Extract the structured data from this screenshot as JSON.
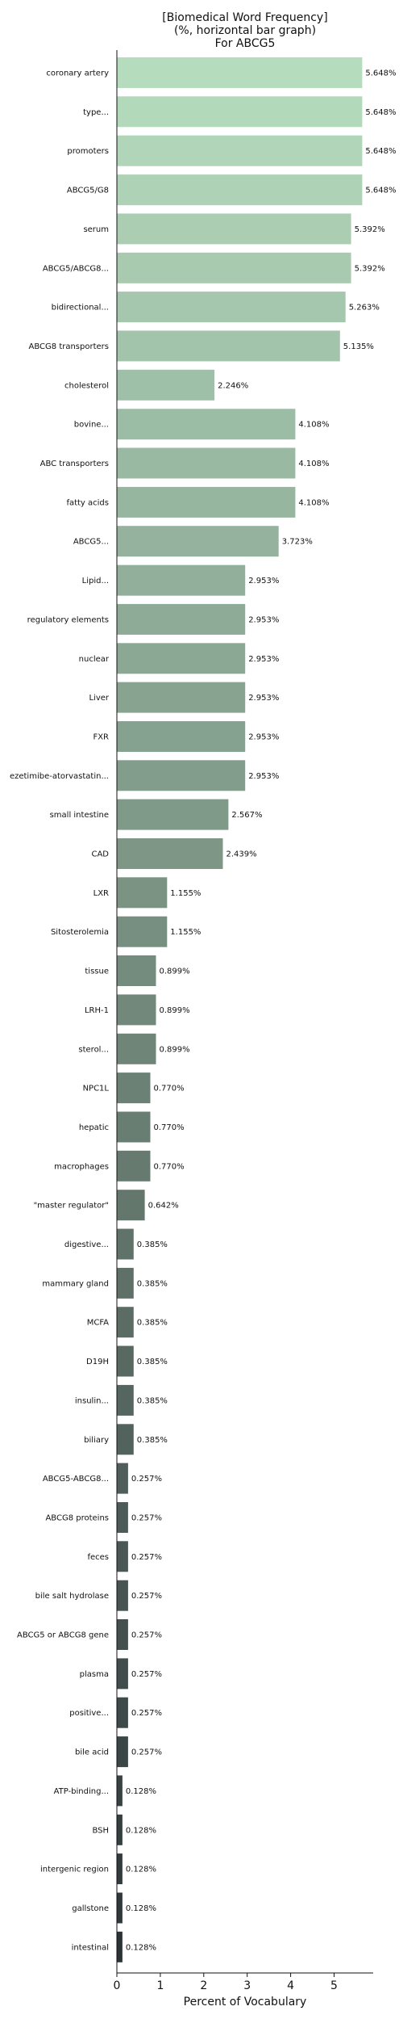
{
  "chart_data": {
    "type": "bar",
    "orientation": "horizontal",
    "title": [
      "[Biomedical Word Frequency]",
      "(%, horizontal bar graph)",
      "For ABCG5"
    ],
    "xlabel": "Percent of Vocabulary",
    "ylabel": "",
    "xlim": [
      0,
      5.9
    ],
    "xticks": [
      0,
      1,
      2,
      3,
      4,
      5
    ],
    "grid": false,
    "legend": "none",
    "value_suffix": "%",
    "color_start": "#b6dcbe",
    "color_end": "#2d3438",
    "categories": [
      "coronary artery",
      "type...",
      "promoters",
      "ABCG5/G8",
      "serum",
      "ABCG5/ABCG8...",
      "bidirectional...",
      "ABCG8 transporters",
      "cholesterol",
      "bovine...",
      "ABC transporters",
      "fatty acids",
      "ABCG5...",
      "Lipid...",
      "regulatory elements",
      "nuclear",
      "Liver",
      "FXR",
      "ezetimibe-atorvastatin...",
      "small intestine",
      "CAD",
      "LXR",
      "Sitosterolemia",
      "tissue",
      "LRH-1",
      "sterol...",
      "NPC1L",
      "hepatic",
      "macrophages",
      "\"master regulator\"",
      "digestive...",
      "mammary gland",
      "MCFA",
      "D19H",
      "insulin...",
      "biliary",
      "ABCG5-ABCG8...",
      "ABCG8 proteins",
      "feces",
      "bile salt hydrolase",
      "ABCG5 or ABCG8 gene",
      "plasma",
      "positive...",
      "bile acid",
      "ATP-binding...",
      "BSH",
      "intergenic region",
      "gallstone",
      "intestinal"
    ],
    "values": [
      5.648,
      5.648,
      5.648,
      5.648,
      5.392,
      5.392,
      5.263,
      5.135,
      2.246,
      4.108,
      4.108,
      4.108,
      3.723,
      2.953,
      2.953,
      2.953,
      2.953,
      2.953,
      2.953,
      2.567,
      2.439,
      1.155,
      1.155,
      0.899,
      0.899,
      0.899,
      0.77,
      0.77,
      0.77,
      0.642,
      0.385,
      0.385,
      0.385,
      0.385,
      0.385,
      0.385,
      0.257,
      0.257,
      0.257,
      0.257,
      0.257,
      0.257,
      0.257,
      0.257,
      0.128,
      0.128,
      0.128,
      0.128,
      0.128
    ],
    "value_labels": [
      "5.648%",
      "5.648%",
      "5.648%",
      "5.648%",
      "5.392%",
      "5.392%",
      "5.263%",
      "5.135%",
      "2.246%",
      "4.108%",
      "4.108%",
      "4.108%",
      "3.723%",
      "2.953%",
      "2.953%",
      "2.953%",
      "2.953%",
      "2.953%",
      "2.953%",
      "2.567%",
      "2.439%",
      "1.155%",
      "1.155%",
      "0.899%",
      "0.899%",
      "0.899%",
      "0.770%",
      "0.770%",
      "0.770%",
      "0.642%",
      "0.385%",
      "0.385%",
      "0.385%",
      "0.385%",
      "0.385%",
      "0.385%",
      "0.257%",
      "0.257%",
      "0.257%",
      "0.257%",
      "0.257%",
      "0.257%",
      "0.257%",
      "0.257%",
      "0.128%",
      "0.128%",
      "0.128%",
      "0.128%",
      "0.128%"
    ]
  }
}
